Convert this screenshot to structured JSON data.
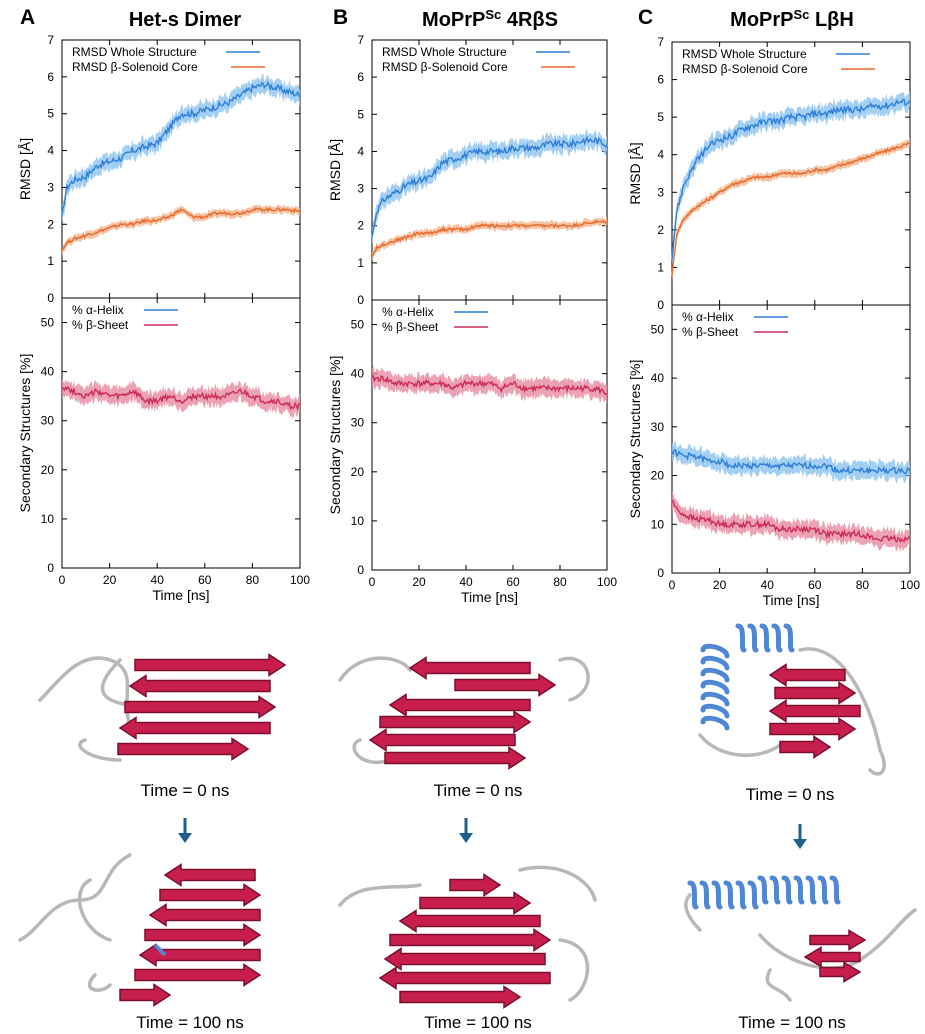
{
  "panels": [
    {
      "letter": "A",
      "title": "Het-s Dimer",
      "time_start": "Time = 0 ns",
      "time_end": "Time = 100 ns",
      "helix_present": false
    },
    {
      "letter": "B",
      "title_prefix": "MoPrP",
      "title_sup": "Sc",
      "title_suffix": " 4RβS",
      "time_start": "Time = 0 ns",
      "time_end": "Time = 100 ns",
      "helix_present": false
    },
    {
      "letter": "C",
      "title_prefix": "MoPrP",
      "title_sup": "Sc",
      "title_suffix": " LβH",
      "time_start": "Time = 0 ns",
      "time_end": "Time = 100 ns",
      "helix_present": true
    }
  ],
  "colors": {
    "whole": "#2f7fd9",
    "whole_band": "#8cc3f0",
    "core": "#e8692a",
    "core_band": "#f4b58e",
    "helix": "#2f7fd9",
    "sheet": "#cc2d55",
    "sheet_band": "#e88aa2",
    "arrow": "#1f5f8b",
    "strand": "#c81e4e",
    "strand_dark": "#7a0f2e",
    "loop": "#b8b8b8",
    "helix_ribbon": "#4f86d6"
  },
  "chart_data": [
    {
      "type": "line",
      "panel": "A",
      "xlabel": "",
      "ylabel": "RMSD [Å]",
      "xlim": [
        0,
        100
      ],
      "ylim": [
        0,
        7
      ],
      "yticks": [
        0,
        1,
        2,
        3,
        4,
        5,
        6,
        7
      ],
      "xticks": [
        0,
        20,
        40,
        60,
        80,
        100
      ],
      "legend": "top-left",
      "series": [
        {
          "name": "RMSD Whole Structure",
          "x": [
            0,
            2,
            5,
            10,
            15,
            20,
            25,
            30,
            35,
            40,
            45,
            50,
            55,
            60,
            65,
            70,
            75,
            80,
            85,
            90,
            95,
            100
          ],
          "y": [
            2.2,
            3.0,
            3.2,
            3.3,
            3.6,
            3.7,
            3.8,
            4.0,
            4.1,
            4.2,
            4.6,
            5.0,
            5.0,
            5.1,
            5.2,
            5.3,
            5.5,
            5.7,
            5.8,
            5.7,
            5.6,
            5.5
          ]
        },
        {
          "name": "RMSD β-Solenoid Core",
          "x": [
            0,
            2,
            5,
            10,
            15,
            20,
            25,
            30,
            35,
            40,
            45,
            50,
            55,
            60,
            65,
            70,
            75,
            80,
            85,
            90,
            95,
            100
          ],
          "y": [
            1.3,
            1.5,
            1.6,
            1.7,
            1.8,
            1.9,
            2.0,
            2.0,
            2.1,
            2.1,
            2.2,
            2.4,
            2.2,
            2.2,
            2.3,
            2.3,
            2.3,
            2.4,
            2.4,
            2.4,
            2.4,
            2.35
          ]
        }
      ]
    },
    {
      "type": "line",
      "panel": "A",
      "xlabel": "Time [ns]",
      "ylabel": "Secondary Structures [%]",
      "xlim": [
        0,
        100
      ],
      "ylim": [
        0,
        55
      ],
      "yticks": [
        0,
        10,
        20,
        30,
        40,
        50
      ],
      "xticks": [
        0,
        20,
        40,
        60,
        80,
        100
      ],
      "legend": "top-left",
      "series": [
        {
          "name": "% α-Helix",
          "x": [],
          "y": []
        },
        {
          "name": "% β-Sheet",
          "x": [
            0,
            5,
            10,
            15,
            20,
            25,
            30,
            35,
            40,
            45,
            50,
            55,
            60,
            65,
            70,
            75,
            80,
            85,
            90,
            95,
            100
          ],
          "y": [
            37,
            36,
            35,
            36,
            35,
            35,
            36,
            34,
            34,
            35,
            34,
            35,
            35,
            35,
            35,
            36,
            35,
            34,
            34,
            33,
            33
          ]
        }
      ]
    },
    {
      "type": "line",
      "panel": "B",
      "xlabel": "",
      "ylabel": "RMSD [Å]",
      "xlim": [
        0,
        100
      ],
      "ylim": [
        0,
        7
      ],
      "yticks": [
        0,
        1,
        2,
        3,
        4,
        5,
        6,
        7
      ],
      "xticks": [
        0,
        20,
        40,
        60,
        80,
        100
      ],
      "legend": "top-left",
      "series": [
        {
          "name": "RMSD Whole Structure",
          "x": [
            0,
            2,
            5,
            10,
            15,
            20,
            25,
            30,
            35,
            40,
            45,
            50,
            55,
            60,
            65,
            70,
            75,
            80,
            85,
            90,
            95,
            100
          ],
          "y": [
            1.7,
            2.4,
            2.7,
            2.9,
            3.1,
            3.2,
            3.3,
            3.7,
            3.8,
            3.9,
            4.0,
            4.0,
            4.0,
            4.1,
            4.1,
            4.1,
            4.2,
            4.2,
            4.2,
            4.3,
            4.3,
            4.2
          ]
        },
        {
          "name": "RMSD β-Solenoid Core",
          "x": [
            0,
            2,
            5,
            10,
            15,
            20,
            25,
            30,
            35,
            40,
            45,
            50,
            55,
            60,
            65,
            70,
            75,
            80,
            85,
            90,
            95,
            100
          ],
          "y": [
            1.2,
            1.4,
            1.5,
            1.6,
            1.7,
            1.8,
            1.8,
            1.9,
            1.9,
            1.9,
            2.0,
            2.0,
            2.0,
            2.0,
            2.0,
            2.0,
            2.0,
            2.0,
            2.0,
            2.05,
            2.1,
            2.1
          ]
        }
      ]
    },
    {
      "type": "line",
      "panel": "B",
      "xlabel": "Time [ns]",
      "ylabel": "Secondary Structures [%]",
      "xlim": [
        0,
        100
      ],
      "ylim": [
        0,
        55
      ],
      "yticks": [
        0,
        10,
        20,
        30,
        40,
        50
      ],
      "xticks": [
        0,
        20,
        40,
        60,
        80,
        100
      ],
      "legend": "top-left",
      "series": [
        {
          "name": "% α-Helix",
          "x": [],
          "y": []
        },
        {
          "name": "% β-Sheet",
          "x": [
            0,
            5,
            10,
            15,
            20,
            25,
            30,
            35,
            40,
            45,
            50,
            55,
            60,
            65,
            70,
            75,
            80,
            85,
            90,
            95,
            100
          ],
          "y": [
            39,
            39,
            38,
            38,
            38,
            38,
            38,
            37,
            38,
            38,
            38,
            37,
            38,
            37,
            37,
            37,
            37,
            37,
            37,
            37,
            36
          ]
        }
      ]
    },
    {
      "type": "line",
      "panel": "C",
      "xlabel": "",
      "ylabel": "RMSD [Å]",
      "xlim": [
        0,
        100
      ],
      "ylim": [
        0,
        7
      ],
      "yticks": [
        0,
        1,
        2,
        3,
        4,
        5,
        6,
        7
      ],
      "xticks": [
        0,
        20,
        40,
        60,
        80,
        100
      ],
      "legend": "top-left",
      "series": [
        {
          "name": "RMSD Whole Structure",
          "x": [
            0,
            2,
            5,
            10,
            15,
            20,
            25,
            30,
            35,
            40,
            45,
            50,
            55,
            60,
            65,
            70,
            75,
            80,
            85,
            90,
            95,
            100
          ],
          "y": [
            1.3,
            2.5,
            3.2,
            3.8,
            4.2,
            4.4,
            4.5,
            4.7,
            4.8,
            4.9,
            4.9,
            5.0,
            5.0,
            5.1,
            5.1,
            5.2,
            5.2,
            5.2,
            5.3,
            5.3,
            5.4,
            5.4
          ]
        },
        {
          "name": "RMSD β-Solenoid Core",
          "x": [
            0,
            2,
            5,
            10,
            15,
            20,
            25,
            30,
            35,
            40,
            45,
            50,
            55,
            60,
            65,
            70,
            75,
            80,
            85,
            90,
            95,
            100
          ],
          "y": [
            0.8,
            1.9,
            2.3,
            2.6,
            2.8,
            3.0,
            3.2,
            3.3,
            3.4,
            3.4,
            3.5,
            3.5,
            3.5,
            3.6,
            3.6,
            3.7,
            3.8,
            3.9,
            4.0,
            4.1,
            4.2,
            4.3
          ]
        }
      ]
    },
    {
      "type": "line",
      "panel": "C",
      "xlabel": "Time [ns]",
      "ylabel": "Secondary Structures [%]",
      "xlim": [
        0,
        100
      ],
      "ylim": [
        0,
        55
      ],
      "yticks": [
        0,
        10,
        20,
        30,
        40,
        50
      ],
      "xticks": [
        0,
        20,
        40,
        60,
        80,
        100
      ],
      "legend": "top-left",
      "series": [
        {
          "name": "% α-Helix",
          "x": [
            0,
            5,
            10,
            15,
            20,
            25,
            30,
            35,
            40,
            45,
            50,
            55,
            60,
            65,
            70,
            75,
            80,
            85,
            90,
            95,
            100
          ],
          "y": [
            25,
            24,
            24,
            23,
            23,
            22,
            22,
            22,
            22,
            22,
            22,
            22,
            22,
            22,
            21,
            21,
            21,
            21,
            21,
            21,
            21
          ]
        },
        {
          "name": "% β-Sheet",
          "x": [
            0,
            2,
            5,
            10,
            15,
            20,
            25,
            30,
            35,
            40,
            45,
            50,
            55,
            60,
            65,
            70,
            75,
            80,
            85,
            90,
            95,
            100
          ],
          "y": [
            15,
            13,
            12,
            11,
            11,
            10,
            10,
            10,
            10,
            10,
            9,
            9,
            9,
            9,
            8,
            8,
            8,
            8,
            7,
            7,
            7,
            7
          ]
        }
      ]
    }
  ]
}
